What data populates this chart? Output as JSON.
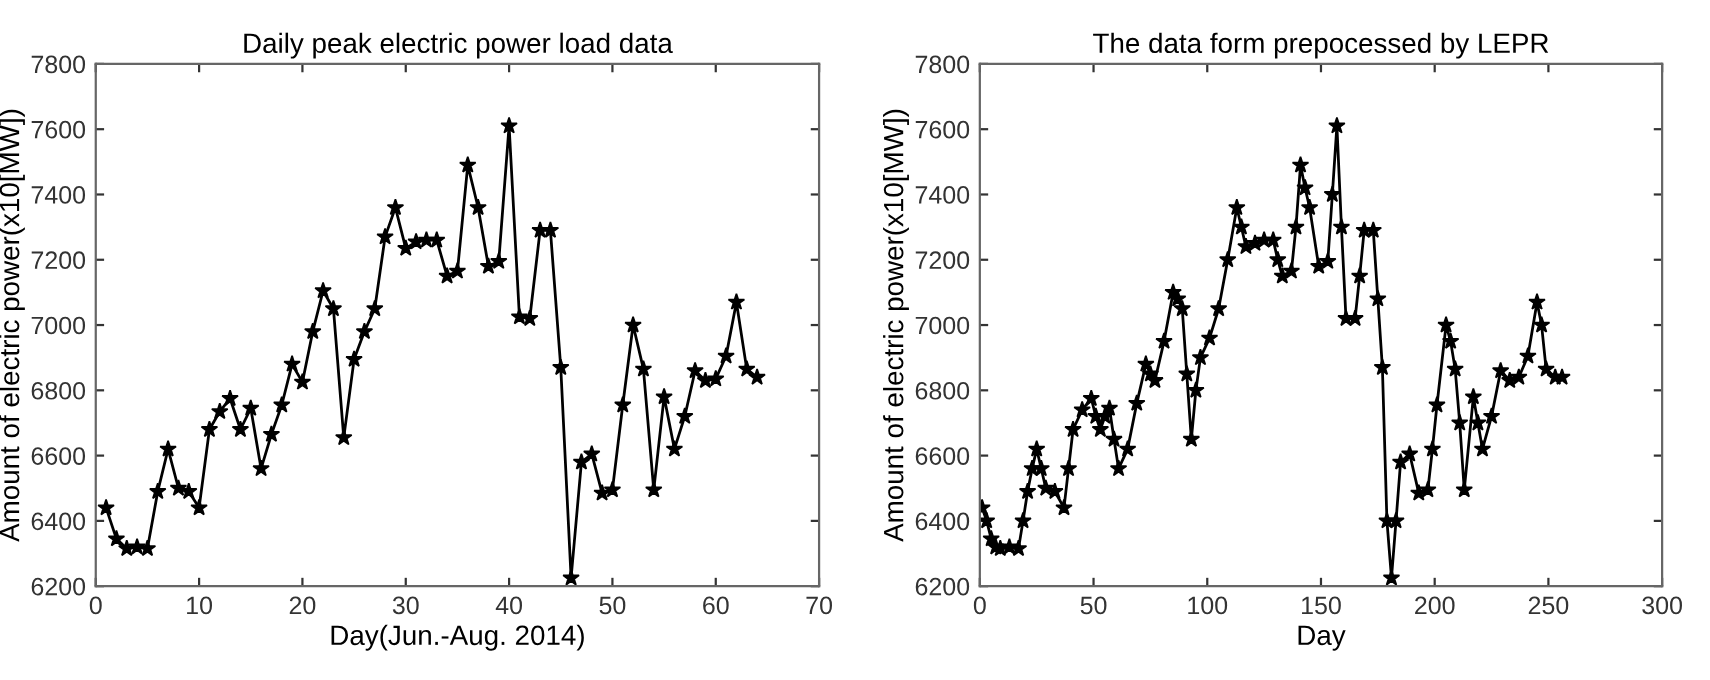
{
  "chart_data": [
    {
      "type": "line",
      "title": "Daily peak electric power load data",
      "xlabel": "Day(Jun.-Aug. 2014)",
      "ylabel": "Amount of electric power(x10[MW])",
      "xlim": [
        0,
        70
      ],
      "xticks": [
        0,
        10,
        20,
        30,
        40,
        50,
        60,
        70
      ],
      "ylim": [
        6200,
        7800
      ],
      "yticks": [
        6200,
        6400,
        6600,
        6800,
        7000,
        7200,
        7400,
        7600,
        7800
      ],
      "marker": "star",
      "line_style": "solid",
      "grid": false,
      "series": [
        {
          "color": "#000000",
          "x": [
            1,
            2,
            3,
            4,
            5,
            6,
            7,
            8,
            9,
            10,
            11,
            12,
            13,
            14,
            15,
            16,
            17,
            18,
            19,
            20,
            21,
            22,
            23,
            24,
            25,
            26,
            27,
            28,
            29,
            30,
            31,
            32,
            33,
            34,
            35,
            36,
            37,
            38,
            39,
            40,
            41,
            42,
            43,
            44,
            45,
            46,
            47,
            48,
            49,
            50,
            51,
            52,
            53,
            54,
            55,
            56,
            57,
            58,
            59,
            60,
            61,
            62,
            63,
            64
          ],
          "values": [
            6440,
            6345,
            6315,
            6320,
            6315,
            6490,
            6620,
            6500,
            6490,
            6440,
            6680,
            6735,
            6775,
            6680,
            6745,
            6560,
            6665,
            6755,
            6880,
            6825,
            6980,
            7105,
            7050,
            6655,
            6895,
            6980,
            7050,
            7270,
            7360,
            7235,
            7255,
            7260,
            7260,
            7150,
            7165,
            7490,
            7360,
            7180,
            7195,
            7610,
            7025,
            7020,
            7290,
            7290,
            6870,
            6225,
            6580,
            6605,
            6485,
            6495,
            6755,
            7000,
            6865,
            6495,
            6780,
            6620,
            6720,
            6860,
            6830,
            6835,
            6905,
            7070,
            6865,
            6840
          ]
        }
      ]
    },
    {
      "type": "line",
      "title": "The data form prepocessed by LEPR",
      "xlabel": "Day",
      "ylabel": "Amount of electric power(x10[MW])",
      "xlim": [
        0,
        300
      ],
      "xticks": [
        0,
        50,
        100,
        150,
        200,
        250,
        300
      ],
      "ylim": [
        6200,
        7800
      ],
      "yticks": [
        6200,
        6400,
        6600,
        6800,
        7000,
        7200,
        7400,
        7600,
        7800
      ],
      "marker": "star",
      "line_style": "solid",
      "grid": false,
      "series": [
        {
          "color": "#000000",
          "x": [
            1,
            3,
            5,
            7,
            9,
            13,
            17,
            19,
            21,
            23,
            25,
            27,
            29,
            33,
            37,
            39,
            41,
            45,
            49,
            51,
            53,
            55,
            57,
            59,
            61,
            65,
            69,
            73,
            75,
            77,
            81,
            85,
            87,
            89,
            91,
            93,
            95,
            97,
            101,
            105,
            109,
            113,
            115,
            117,
            121,
            125,
            129,
            131,
            133,
            137,
            139,
            141,
            143,
            145,
            149,
            153,
            155,
            157,
            159,
            161,
            165,
            167,
            169,
            173,
            175,
            177,
            179,
            181,
            183,
            185,
            189,
            193,
            197,
            199,
            201,
            205,
            207,
            209,
            211,
            213,
            217,
            219,
            221,
            225,
            229,
            233,
            237,
            241,
            245,
            247,
            249,
            253,
            256
          ],
          "values": [
            6440,
            6400,
            6345,
            6320,
            6315,
            6320,
            6315,
            6400,
            6490,
            6560,
            6620,
            6560,
            6500,
            6490,
            6440,
            6560,
            6680,
            6740,
            6775,
            6720,
            6680,
            6720,
            6745,
            6650,
            6560,
            6620,
            6760,
            6880,
            6850,
            6830,
            6950,
            7100,
            7080,
            7050,
            6850,
            6650,
            6800,
            6900,
            6960,
            7050,
            7200,
            7360,
            7300,
            7240,
            7250,
            7260,
            7260,
            7200,
            7150,
            7165,
            7300,
            7490,
            7420,
            7360,
            7180,
            7195,
            7400,
            7610,
            7300,
            7020,
            7020,
            7150,
            7290,
            7290,
            7080,
            6870,
            6400,
            6225,
            6400,
            6580,
            6605,
            6485,
            6495,
            6620,
            6755,
            7000,
            6950,
            6865,
            6700,
            6495,
            6780,
            6700,
            6620,
            6720,
            6860,
            6830,
            6840,
            6905,
            7070,
            7000,
            6865,
            6840,
            6840
          ]
        }
      ]
    }
  ]
}
